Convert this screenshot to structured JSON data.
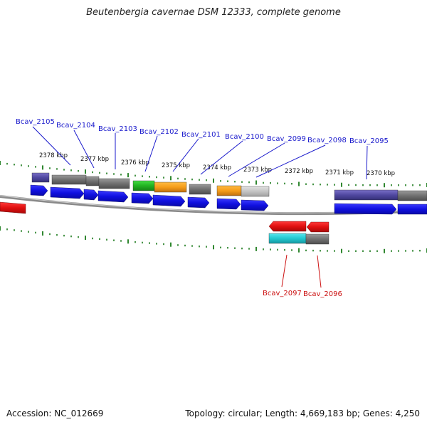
{
  "title": "Beutenbergia cavernae DSM 12333, complete genome",
  "accession": "Accession: NC_012669",
  "summary": "Topology: circular; Length: 4,669,183 bp; Genes: 4,250",
  "colors": {
    "forward_label": "#1a1acc",
    "reverse_label": "#cc1111",
    "tick": "#1a7a1a",
    "cds_blue": "#1515e0",
    "cds_red": "#e01010",
    "feature_gray": "#777777",
    "feature_purple": "#5a4fa0",
    "feature_green": "#22b222",
    "feature_orange": "#f59d1a",
    "feature_lightgray": "#c8c8c8",
    "feature_cyan": "#22c8d0"
  },
  "scale_labels": [
    "2378 kbp",
    "2377 kbp",
    "2376 kbp",
    "2375 kbp",
    "2374 kbp",
    "2373 kbp",
    "2372 kbp",
    "2371 kbp",
    "2370 kbp"
  ],
  "forward_genes": [
    "Bcav_2105",
    "Bcav_2104",
    "Bcav_2103",
    "Bcav_2102",
    "Bcav_2101",
    "Bcav_2100",
    "Bcav_2099",
    "Bcav_2098",
    "Bcav_2095"
  ],
  "reverse_genes": [
    "Bcav_2097",
    "Bcav_2096"
  ]
}
